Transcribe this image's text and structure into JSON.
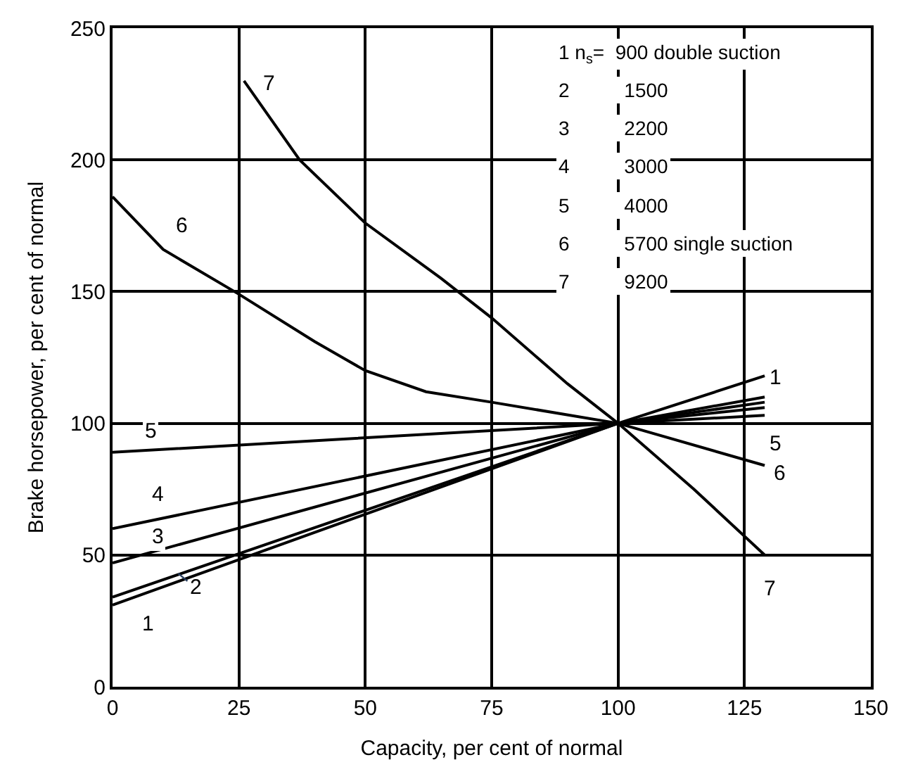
{
  "chart_data": {
    "type": "line",
    "xlabel": "Capacity, per cent of normal",
    "ylabel": "Brake horsepower, per cent of normal",
    "xlim": [
      0,
      150
    ],
    "xticks": [
      0,
      25,
      50,
      75,
      100,
      125,
      150
    ],
    "ylim": [
      0,
      250
    ],
    "yticks": [
      0,
      50,
      100,
      150,
      200,
      250
    ],
    "grid": true,
    "marker": "none",
    "line_style": "solid",
    "series": [
      {
        "color": "#000000",
        "x": [
          0,
          100,
          129
        ],
        "values": [
          31,
          100,
          118
        ]
      },
      {
        "color": "#000000",
        "x": [
          0,
          100,
          129
        ],
        "values": [
          34,
          100,
          110
        ]
      },
      {
        "color": "#000000",
        "x": [
          0,
          100,
          129
        ],
        "values": [
          47,
          100,
          108
        ]
      },
      {
        "color": "#000000",
        "x": [
          0,
          100,
          129
        ],
        "values": [
          60,
          100,
          106
        ]
      },
      {
        "color": "#000000",
        "x": [
          0,
          100,
          129
        ],
        "values": [
          89,
          100,
          103
        ]
      },
      {
        "color": "#000000",
        "x": [
          0,
          10,
          25,
          40,
          50,
          62,
          75,
          100,
          129
        ],
        "values": [
          186,
          166,
          149,
          131,
          120,
          112,
          108,
          100,
          84
        ]
      },
      {
        "color": "#000000",
        "x": [
          26,
          37,
          50,
          65,
          75,
          90,
          100,
          115,
          129
        ],
        "values": [
          230,
          200,
          176,
          155,
          140,
          115,
          100,
          75,
          50
        ]
      }
    ],
    "annotations": [
      {
        "text": "1",
        "x": 7,
        "y": 24
      },
      {
        "text": "2",
        "x": 13,
        "y": 43
      },
      {
        "text": "3",
        "x": 9,
        "y": 57
      },
      {
        "text": "4",
        "x": 9,
        "y": 73
      },
      {
        "text": "5",
        "x": 7.5,
        "y": 97
      },
      {
        "text": "6",
        "x": 13.5,
        "y": 175
      },
      {
        "text": "7",
        "x": 31,
        "y": 229
      },
      {
        "text": "1",
        "x": 131,
        "y": 117
      },
      {
        "text": "5",
        "x": 131,
        "y": 92
      },
      {
        "text": "6",
        "x": 132,
        "y": 81
      },
      {
        "text": "7",
        "x": 130,
        "y": 37
      },
      "1 n$_{s}$=  900 double suction",
      "2          1500",
      "3          2200",
      "4          3000",
      "5          4000",
      "6          5700 single suction",
      "7          9200"
    ]
  }
}
